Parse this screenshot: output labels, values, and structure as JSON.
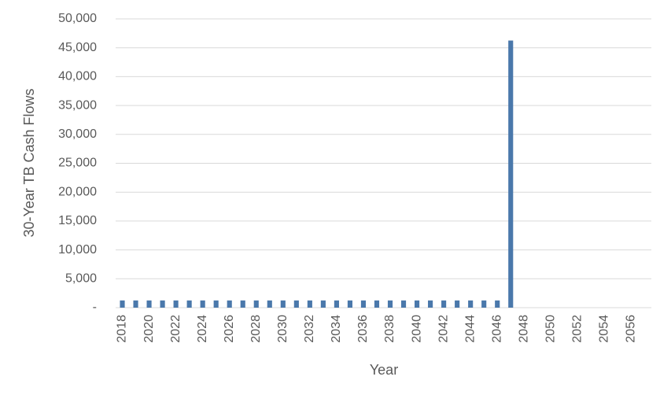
{
  "chart_data": {
    "type": "bar",
    "x_label": "Year",
    "y_label": "30-Year TB Cash Flows",
    "categories": [
      "2018",
      null,
      "2020",
      null,
      "2022",
      null,
      "2024",
      null,
      "2026",
      null,
      "2028",
      null,
      "2030",
      null,
      "2032",
      null,
      "2034",
      null,
      "2036",
      null,
      "2038",
      null,
      "2040",
      null,
      "2042",
      null,
      "2044",
      null,
      "2046",
      null,
      "2048",
      null,
      "2050",
      null,
      "2052",
      null,
      "2054",
      null,
      "2056",
      null
    ],
    "values": [
      1250,
      1250,
      1250,
      1250,
      1250,
      1250,
      1250,
      1250,
      1250,
      1250,
      1250,
      1250,
      1250,
      1250,
      1250,
      1250,
      1250,
      1250,
      1250,
      1250,
      1250,
      1250,
      1250,
      1250,
      1250,
      1250,
      1250,
      1250,
      1250,
      46250,
      0,
      0,
      0,
      0,
      0,
      0,
      0,
      0,
      0,
      0
    ],
    "color": "#4a78ab",
    "ylim": [
      0,
      50000
    ],
    "yticks": [
      {
        "value": 0,
        "label": "-"
      },
      {
        "value": 5000,
        "label": "5,000"
      },
      {
        "value": 10000,
        "label": "10,000"
      },
      {
        "value": 15000,
        "label": "15,000"
      },
      {
        "value": 20000,
        "label": "20,000"
      },
      {
        "value": 25000,
        "label": "25,000"
      },
      {
        "value": 30000,
        "label": "30,000"
      },
      {
        "value": 35000,
        "label": "35,000"
      },
      {
        "value": 40000,
        "label": "40,000"
      },
      {
        "value": 45000,
        "label": "45,000"
      },
      {
        "value": 50000,
        "label": "50,000"
      }
    ],
    "grid": true
  }
}
